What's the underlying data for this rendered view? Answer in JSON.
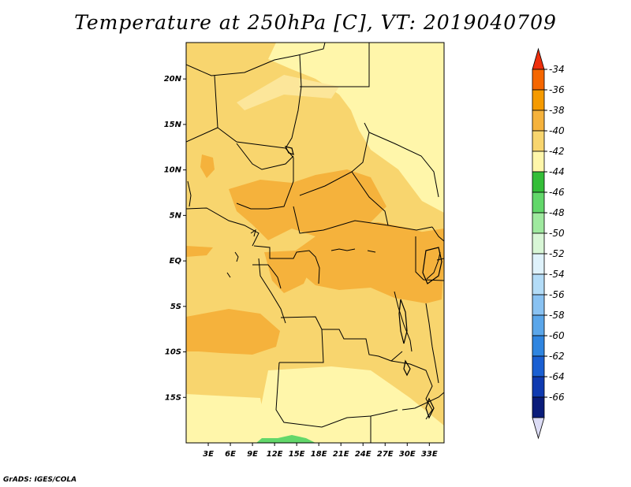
{
  "chart_data": {
    "type": "heatmap",
    "title": "Temperature at 250hPa [C], VT: 2019040709",
    "variable": "Temperature at 250hPa",
    "units": "C",
    "valid_time": "2019040709",
    "lon_range": [
      0,
      35
    ],
    "lat_range": [
      -20,
      24
    ],
    "x_ticks": [
      {
        "value": 3,
        "label": "3E"
      },
      {
        "value": 6,
        "label": "6E"
      },
      {
        "value": 9,
        "label": "9E"
      },
      {
        "value": 12,
        "label": "12E"
      },
      {
        "value": 15,
        "label": "15E"
      },
      {
        "value": 18,
        "label": "18E"
      },
      {
        "value": 21,
        "label": "21E"
      },
      {
        "value": 24,
        "label": "24E"
      },
      {
        "value": 27,
        "label": "27E"
      },
      {
        "value": 30,
        "label": "30E"
      },
      {
        "value": 33,
        "label": "33E"
      }
    ],
    "y_ticks": [
      {
        "value": 20,
        "label": "20N"
      },
      {
        "value": 15,
        "label": "15N"
      },
      {
        "value": 10,
        "label": "10N"
      },
      {
        "value": 5,
        "label": "5N"
      },
      {
        "value": 0,
        "label": "EQ"
      },
      {
        "value": -5,
        "label": "5S"
      },
      {
        "value": -10,
        "label": "10S"
      },
      {
        "value": -15,
        "label": "15S"
      }
    ],
    "colorbar": {
      "levels": [
        "-34",
        "-36",
        "-38",
        "-40",
        "-42",
        "-44",
        "-46",
        "-48",
        "-50",
        "-52",
        "-54",
        "-56",
        "-58",
        "-60",
        "-62",
        "-64",
        "-66"
      ],
      "colors": [
        "#ee2f0c",
        "#f56600",
        "#f59a00",
        "#f5b23c",
        "#f8d56e",
        "#fff6aa",
        "#34be38",
        "#62d76a",
        "#9fe99f",
        "#d8f6d6",
        "#dff2fb",
        "#b3dcf7",
        "#89c2f2",
        "#5aa6ea",
        "#2f85e0",
        "#1a5fd2",
        "#0f3ab0",
        "#0a1c7a",
        "#dcdcf5"
      ]
    },
    "grid": false,
    "legend_position": "right"
  },
  "credit": "GrADS: IGES/COLA"
}
